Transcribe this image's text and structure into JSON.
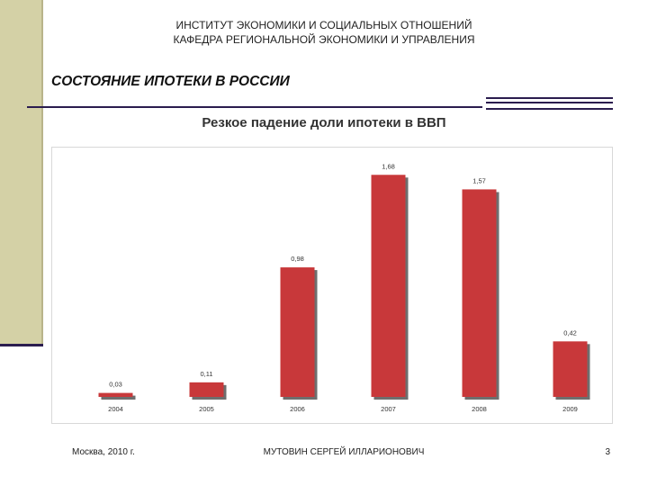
{
  "header": {
    "line1": "ИНСТИТУТ ЭКОНОМИКИ И СОЦИАЛЬНЫХ ОТНОШЕНИЙ",
    "line2": "КАФЕДРА РЕГИОНАЛЬНОЙ ЭКОНОМИКИ И УПРАВЛЕНИЯ"
  },
  "slide": {
    "title": "СОСТОЯНИЕ ИПОТЕКИ В РОССИИ",
    "subtitle": "Резкое падение доли ипотеки  в ВВП"
  },
  "footer": {
    "left": "Москва, 2010 г.",
    "center": "МУТОВИН СЕРГЕЙ ИЛЛАРИОНОВИЧ",
    "page_number": "3"
  },
  "colors": {
    "bar": "#c8383a",
    "bar_shadow": "#6e6e6e",
    "accent_band": "#d4d1a6",
    "accent_line": "#2b1d4f"
  },
  "chart_data": {
    "type": "bar",
    "categories": [
      "2004",
      "2005",
      "2006",
      "2007",
      "2008",
      "2009"
    ],
    "values": [
      0.03,
      0.11,
      0.98,
      1.68,
      1.57,
      0.42
    ],
    "value_labels": [
      "0,03",
      "0,11",
      "0,98",
      "1,68",
      "1,57",
      "0,42"
    ],
    "ylim": [
      0,
      1.75
    ],
    "grid": false,
    "legend": "none"
  }
}
